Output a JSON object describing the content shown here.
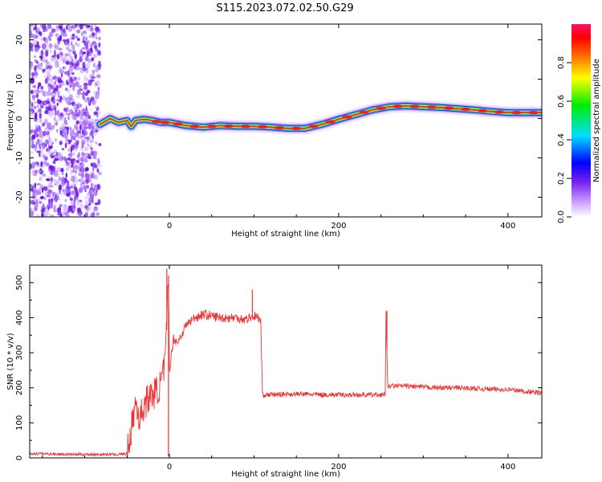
{
  "title": "S115.2023.072.02.50.G29",
  "chart_data": [
    {
      "type": "heatmap",
      "xlabel": "Height of straight line (km)",
      "ylabel": "Frequency (Hz)",
      "xlim": [
        -165,
        440
      ],
      "ylim": [
        -25,
        24
      ],
      "xticks": [
        "0",
        "200",
        "400"
      ],
      "yticks": [
        "-20",
        "-10",
        "0",
        "10",
        "20"
      ],
      "colorbar": {
        "label": "Normalized spectral amplitude",
        "range": [
          0,
          1
        ],
        "ticks": [
          "0.0",
          "0.2",
          "0.4",
          "0.6",
          "0.8"
        ]
      },
      "noise_region": {
        "x_from": -165,
        "x_to": -82
      },
      "ridge": {
        "x": [
          -82,
          -70,
          -60,
          -50,
          -45,
          -40,
          -30,
          -20,
          -10,
          0,
          20,
          40,
          60,
          80,
          100,
          120,
          140,
          160,
          180,
          200,
          220,
          240,
          260,
          280,
          300,
          320,
          340,
          360,
          380,
          400,
          420,
          440
        ],
        "y": [
          -1.5,
          0,
          -1,
          -0.5,
          -2,
          -0.5,
          -0.2,
          -0.5,
          -1,
          -1,
          -1.8,
          -2.2,
          -1.8,
          -2,
          -2,
          -2.2,
          -2.5,
          -2.5,
          -1.5,
          -0.2,
          1,
          2.2,
          3,
          3.2,
          3,
          2.8,
          2.5,
          2.2,
          1.8,
          1.5,
          1.5,
          1.5
        ]
      }
    },
    {
      "type": "line",
      "xlabel": "Height of straight line (km)",
      "ylabel": "SNR (10 * v/v)",
      "xlim": [
        -165,
        440
      ],
      "ylim": [
        0,
        550
      ],
      "xticks": [
        "0",
        "200",
        "400"
      ],
      "yticks": [
        "0",
        "100",
        "200",
        "300",
        "400",
        "500"
      ],
      "color": "#ee3333",
      "x": [
        -165,
        -150,
        -120,
        -100,
        -80,
        -60,
        -50,
        -45,
        -40,
        -35,
        -30,
        -25,
        -20,
        -15,
        -10,
        -5,
        -3,
        -1,
        0,
        5,
        10,
        20,
        30,
        40,
        50,
        60,
        70,
        80,
        90,
        100,
        105,
        108,
        110,
        120,
        140,
        160,
        180,
        200,
        220,
        240,
        255,
        256,
        258,
        260,
        280,
        300,
        320,
        340,
        360,
        380,
        400,
        420,
        440
      ],
      "y": [
        12,
        12,
        10,
        10,
        10,
        10,
        12,
        80,
        160,
        110,
        150,
        170,
        180,
        190,
        210,
        270,
        380,
        520,
        250,
        340,
        330,
        380,
        400,
        410,
        405,
        400,
        400,
        400,
        395,
        405,
        400,
        390,
        180,
        180,
        182,
        182,
        180,
        180,
        180,
        180,
        180,
        420,
        195,
        205,
        205,
        202,
        200,
        200,
        198,
        196,
        195,
        190,
        185
      ],
      "spikes": [
        {
          "x": -3,
          "y": 540
        },
        {
          "x": -1,
          "y": 5
        },
        {
          "x": 98,
          "y": 480
        },
        {
          "x": 257,
          "y": 420
        }
      ]
    }
  ]
}
